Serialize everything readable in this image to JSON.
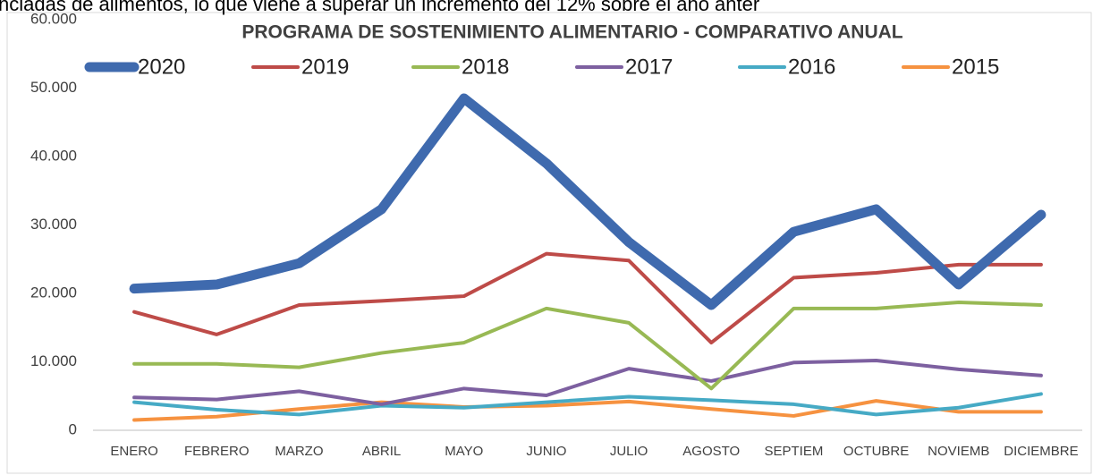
{
  "caption": "nciadas de alimentos, lo que viene a superar un incremento del 12% sobre el año anter",
  "chart_data": {
    "type": "line",
    "title": "PROGRAMA DE SOSTENIMIENTO ALIMENTARIO - COMPARATIVO ANUAL",
    "categories": [
      "ENERO",
      "FEBRERO",
      "MARZO",
      "ABRIL",
      "MAYO",
      "JUNIO",
      "JULIO",
      "AGOSTO",
      "SEPTIEM",
      "OCTUBRE",
      "NOVIEMB",
      "DICIEMBRE"
    ],
    "series": [
      {
        "name": "2020",
        "color": "#3f6aae",
        "values": [
          20700,
          21300,
          24400,
          32300,
          48500,
          39000,
          27500,
          18300,
          29000,
          32300,
          21300,
          31500
        ]
      },
      {
        "name": "2019",
        "color": "#be4b48",
        "values": [
          17300,
          14000,
          18300,
          18900,
          19600,
          25800,
          24800,
          12800,
          22300,
          23000,
          24200,
          24200
        ]
      },
      {
        "name": "2018",
        "color": "#98b954",
        "values": [
          9700,
          9700,
          9200,
          11300,
          12800,
          17800,
          15700,
          6100,
          17800,
          17800,
          18700,
          18300
        ]
      },
      {
        "name": "2017",
        "color": "#7d60a0",
        "values": [
          4800,
          4500,
          5700,
          3800,
          6100,
          5100,
          9000,
          7200,
          9900,
          10200,
          8900,
          8000
        ]
      },
      {
        "name": "2016",
        "color": "#46aac5",
        "values": [
          4100,
          3000,
          2300,
          3600,
          3300,
          4100,
          4900,
          4400,
          3800,
          2300,
          3300,
          5300
        ]
      },
      {
        "name": "2015",
        "color": "#f69240",
        "values": [
          1500,
          2000,
          3100,
          4100,
          3400,
          3600,
          4200,
          3100,
          2100,
          4300,
          2700,
          2700
        ]
      }
    ],
    "ylim": [
      0,
      60000
    ],
    "yticks": [
      0,
      {
        "value": 10000,
        "label": "10.000"
      },
      {
        "value": 20000,
        "label": "20.000"
      },
      {
        "value": 30000,
        "label": "30.000"
      },
      {
        "value": 40000,
        "label": "40.000"
      },
      {
        "value": 50000,
        "label": "50.000"
      },
      {
        "value": 60000,
        "label": "60.000"
      }
    ],
    "grid": false,
    "legend": "top"
  }
}
